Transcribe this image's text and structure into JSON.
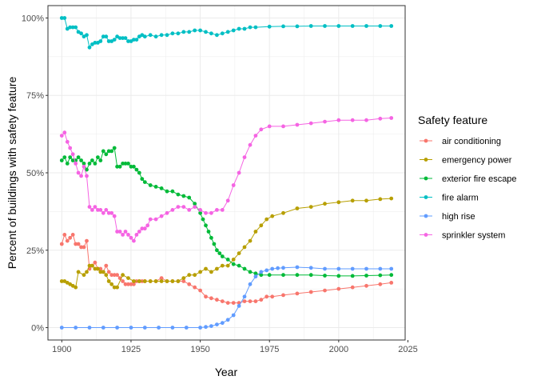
{
  "chart_data": {
    "type": "line",
    "xlabel": "Year",
    "ylabel": "Percent of buildings with safety feature",
    "xlim": [
      1895,
      2024
    ],
    "ylim": [
      -4,
      104
    ],
    "x_ticks": [
      1900,
      1925,
      1950,
      1975,
      2000,
      2025
    ],
    "y_ticks": [
      0,
      25,
      50,
      75,
      100
    ],
    "y_tick_labels": [
      "0%",
      "25%",
      "50%",
      "75%",
      "100%"
    ],
    "grid": true,
    "legend_position": "right",
    "legend_title": "Safety feature",
    "colors": {
      "air conditioning": "#F8766D",
      "emergency power": "#B79F00",
      "exterior fire escape": "#00BA38",
      "fire alarm": "#00BFC4",
      "high rise": "#619CFF",
      "sprinkler system": "#F564E3"
    },
    "series": [
      {
        "name": "air conditioning",
        "x": [
          1900,
          1901,
          1902,
          1903,
          1904,
          1905,
          1906,
          1907,
          1908,
          1909,
          1910,
          1911,
          1912,
          1913,
          1914,
          1915,
          1916,
          1917,
          1918,
          1919,
          1920,
          1921,
          1922,
          1923,
          1924,
          1925,
          1926,
          1927,
          1928,
          1929,
          1930,
          1932,
          1934,
          1936,
          1938,
          1940,
          1942,
          1944,
          1946,
          1948,
          1950,
          1952,
          1954,
          1956,
          1958,
          1960,
          1962,
          1964,
          1966,
          1968,
          1970,
          1972,
          1974,
          1976,
          1980,
          1985,
          1990,
          1995,
          2000,
          2005,
          2010,
          2015,
          2019
        ],
        "y": [
          27,
          30,
          28,
          29,
          30,
          27,
          27,
          26,
          26,
          28,
          19,
          20,
          21,
          19,
          19,
          18,
          20,
          18,
          17,
          17,
          17,
          16,
          15,
          14,
          14,
          14,
          14,
          15,
          15,
          15,
          15,
          15,
          15,
          16,
          15,
          15,
          15,
          15,
          14,
          13,
          12,
          10,
          9.5,
          9,
          8.5,
          8,
          8,
          8,
          8.5,
          8.5,
          8.5,
          9,
          10,
          10,
          10.5,
          11,
          11.5,
          12,
          12.5,
          13,
          13.5,
          14,
          14.5
        ]
      },
      {
        "name": "emergency power",
        "x": [
          1900,
          1901,
          1902,
          1903,
          1904,
          1905,
          1906,
          1908,
          1909,
          1910,
          1911,
          1912,
          1913,
          1914,
          1915,
          1916,
          1917,
          1918,
          1919,
          1920,
          1922,
          1924,
          1926,
          1928,
          1930,
          1932,
          1934,
          1936,
          1938,
          1940,
          1942,
          1944,
          1946,
          1948,
          1950,
          1952,
          1954,
          1956,
          1958,
          1960,
          1962,
          1964,
          1966,
          1968,
          1970,
          1972,
          1974,
          1976,
          1980,
          1985,
          1990,
          1995,
          2000,
          2005,
          2010,
          2015,
          2019
        ],
        "y": [
          15,
          15,
          14.5,
          14,
          13.5,
          13,
          18,
          17,
          18,
          20,
          20,
          19,
          19,
          18,
          18,
          17,
          15,
          14,
          13,
          13,
          17,
          16,
          15,
          15,
          15,
          15,
          15,
          15,
          15,
          15,
          15,
          16,
          17,
          17,
          18,
          19,
          18,
          19,
          20,
          20,
          22,
          24,
          26,
          28,
          31,
          33,
          35,
          36,
          37,
          38.5,
          39,
          40,
          40.5,
          41,
          41,
          41.5,
          41.7
        ]
      },
      {
        "name": "exterior fire escape",
        "x": [
          1900,
          1901,
          1902,
          1903,
          1904,
          1905,
          1906,
          1907,
          1908,
          1909,
          1910,
          1911,
          1912,
          1913,
          1914,
          1915,
          1916,
          1917,
          1918,
          1919,
          1920,
          1921,
          1922,
          1923,
          1924,
          1925,
          1926,
          1927,
          1928,
          1929,
          1930,
          1932,
          1934,
          1936,
          1938,
          1940,
          1942,
          1944,
          1946,
          1948,
          1950,
          1951,
          1952,
          1953,
          1954,
          1955,
          1956,
          1957,
          1958,
          1960,
          1962,
          1964,
          1966,
          1968,
          1970,
          1972,
          1975,
          1980,
          1985,
          1990,
          1995,
          2000,
          2005,
          2010,
          2015,
          2019
        ],
        "y": [
          54,
          55,
          53,
          55,
          54,
          54,
          55,
          54,
          53,
          51,
          53,
          54,
          53,
          55,
          54,
          57,
          56,
          57,
          57,
          58,
          52,
          52,
          53,
          53,
          53,
          52,
          52,
          51,
          50,
          48,
          47,
          46,
          45.5,
          45,
          44,
          44,
          43,
          42.5,
          42,
          40,
          37,
          35,
          33,
          31,
          29,
          27,
          25,
          24,
          23,
          22,
          20.5,
          20,
          19,
          18,
          17.5,
          17,
          17,
          17,
          17,
          17,
          16.8,
          16.7,
          16.7,
          16.8,
          16.9,
          17
        ]
      },
      {
        "name": "fire alarm",
        "x": [
          1900,
          1901,
          1902,
          1903,
          1904,
          1905,
          1906,
          1907,
          1908,
          1909,
          1910,
          1911,
          1912,
          1913,
          1914,
          1915,
          1916,
          1917,
          1918,
          1919,
          1920,
          1921,
          1922,
          1923,
          1924,
          1925,
          1926,
          1927,
          1928,
          1929,
          1930,
          1932,
          1934,
          1936,
          1938,
          1940,
          1942,
          1944,
          1946,
          1948,
          1950,
          1952,
          1954,
          1956,
          1958,
          1960,
          1962,
          1964,
          1966,
          1968,
          1970,
          1975,
          1980,
          1985,
          1990,
          1995,
          2000,
          2005,
          2010,
          2015,
          2019
        ],
        "y": [
          100,
          100,
          96.5,
          97,
          97,
          97,
          95.5,
          95,
          94,
          94.5,
          90.5,
          91.5,
          92,
          92,
          92.5,
          94,
          94,
          92.5,
          92.5,
          93,
          94,
          93.5,
          93.5,
          93.5,
          92.5,
          92.5,
          93,
          93,
          94,
          94.5,
          94,
          94.5,
          94,
          94.5,
          94.5,
          95,
          95,
          95.5,
          95.5,
          96,
          96,
          95.5,
          95,
          94.5,
          95,
          95.5,
          96,
          96.5,
          96.5,
          97,
          97,
          97.2,
          97.3,
          97.3,
          97.4,
          97.4,
          97.4,
          97.4,
          97.4,
          97.4,
          97.4
        ]
      },
      {
        "name": "high rise",
        "x": [
          1900,
          1905,
          1910,
          1915,
          1920,
          1925,
          1930,
          1935,
          1940,
          1945,
          1950,
          1952,
          1954,
          1956,
          1958,
          1960,
          1962,
          1964,
          1966,
          1968,
          1970,
          1972,
          1974,
          1976,
          1978,
          1980,
          1985,
          1990,
          1995,
          2000,
          2005,
          2010,
          2015,
          2019
        ],
        "y": [
          0,
          0,
          0,
          0,
          0,
          0,
          0,
          0,
          0,
          0,
          0,
          0.2,
          0.5,
          1,
          1.5,
          2.5,
          4,
          7,
          10,
          14,
          16.5,
          18,
          18.5,
          19,
          19.2,
          19.3,
          19.5,
          19.3,
          19,
          19,
          19,
          19,
          19,
          19
        ]
      },
      {
        "name": "sprinkler system",
        "x": [
          1900,
          1901,
          1902,
          1903,
          1904,
          1905,
          1906,
          1907,
          1908,
          1909,
          1910,
          1911,
          1912,
          1913,
          1914,
          1915,
          1916,
          1917,
          1918,
          1919,
          1920,
          1921,
          1922,
          1923,
          1924,
          1925,
          1926,
          1927,
          1928,
          1929,
          1930,
          1931,
          1932,
          1934,
          1936,
          1938,
          1940,
          1942,
          1944,
          1946,
          1948,
          1950,
          1952,
          1954,
          1956,
          1958,
          1960,
          1962,
          1964,
          1966,
          1968,
          1970,
          1972,
          1975,
          1980,
          1985,
          1990,
          1995,
          2000,
          2005,
          2010,
          2015,
          2019
        ],
        "y": [
          62,
          63,
          60,
          58,
          56,
          53,
          50,
          49,
          52,
          49,
          39,
          38,
          39,
          38,
          38,
          37,
          38,
          37,
          37,
          36,
          31,
          31,
          30,
          31,
          30,
          29,
          28,
          30,
          31,
          32,
          32,
          33,
          35,
          35,
          36,
          37,
          38,
          39,
          39,
          38,
          39,
          38,
          37,
          37,
          38,
          38,
          41,
          46,
          50,
          55,
          59,
          62,
          64,
          65,
          65,
          65.5,
          66,
          66.5,
          67,
          67,
          67,
          67.5,
          67.7
        ]
      }
    ]
  }
}
